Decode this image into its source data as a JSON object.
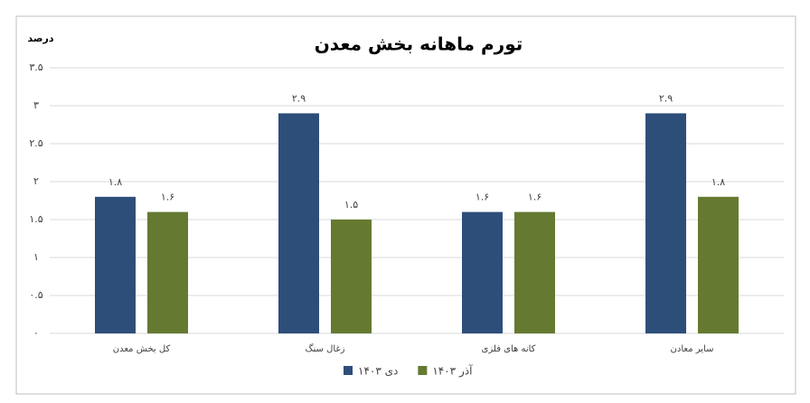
{
  "chart_data": {
    "type": "bar",
    "title": "تورم ماهانه بخش معدن",
    "y_label": "درصد",
    "categories": [
      "کل بخش معدن",
      "زغال سنگ",
      "کانه های فلزی",
      "سایر معادن"
    ],
    "series": [
      {
        "name": "دی ۱۴۰۳",
        "color": "#2e4e7a",
        "values": [
          1.8,
          2.9,
          1.6,
          2.9
        ],
        "value_labels": [
          "۱.۸",
          "۲.۹",
          "۱.۶",
          "۲.۹"
        ]
      },
      {
        "name": "آذر ۱۴۰۳",
        "color": "#657a30",
        "values": [
          1.6,
          1.5,
          1.6,
          1.8
        ],
        "value_labels": [
          "۱.۶",
          "۱.۵",
          "۱.۶",
          "۱.۸"
        ]
      }
    ],
    "ylim": [
      0,
      3.5
    ],
    "yticks": [
      {
        "value": 0,
        "label": "۰"
      },
      {
        "value": 0.5,
        "label": "۰.۵"
      },
      {
        "value": 1,
        "label": "۱"
      },
      {
        "value": 1.5,
        "label": "۱.۵"
      },
      {
        "value": 2,
        "label": "۲"
      },
      {
        "value": 2.5,
        "label": "۲.۵"
      },
      {
        "value": 3,
        "label": "۳"
      },
      {
        "value": 3.5,
        "label": "۳.۵"
      }
    ],
    "grid": true,
    "legend": "bottom"
  }
}
